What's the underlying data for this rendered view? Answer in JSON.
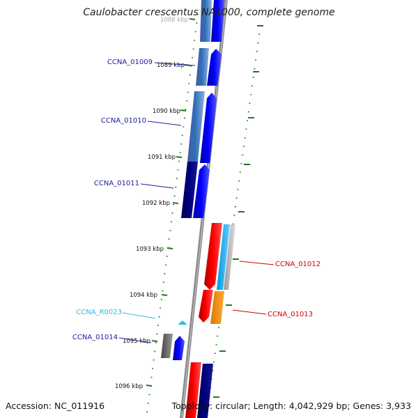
{
  "title": "Caulobacter crescentus NA1000, complete genome",
  "accession": "Accession: NC_011916",
  "topology": "Topology: circular; Length: 4,042,929 bp; Genes: 3,933",
  "colors": {
    "kbp_tick": "#1e7a1e",
    "backbone": "#8a8a8a",
    "label_blue": "#1a1aa0",
    "label_red": "#cc0000",
    "label_cyan": "#33bbdd"
  },
  "kbp_labels": [
    "1088 kbp",
    "1089 kbp",
    "1090 kbp",
    "1091 kbp",
    "1092 kbp",
    "1093 kbp",
    "1094 kbp",
    "1095 kbp",
    "1096 kbp"
  ],
  "genes": [
    {
      "name": "CCNA_01009",
      "strand": "forward",
      "label_color": "#1a1aa0"
    },
    {
      "name": "CCNA_01010",
      "strand": "forward",
      "label_color": "#1a1aa0"
    },
    {
      "name": "CCNA_01011",
      "strand": "forward",
      "label_color": "#1a1aa0"
    },
    {
      "name": "CCNA_01012",
      "strand": "reverse",
      "label_color": "#cc0000"
    },
    {
      "name": "CCNA_01013",
      "strand": "reverse",
      "label_color": "#cc0000"
    },
    {
      "name": "CCNA_R0023",
      "strand": "forward",
      "label_color": "#33bbdd"
    },
    {
      "name": "CCNA_01014",
      "strand": "forward",
      "label_color": "#1a1aa0"
    }
  ]
}
